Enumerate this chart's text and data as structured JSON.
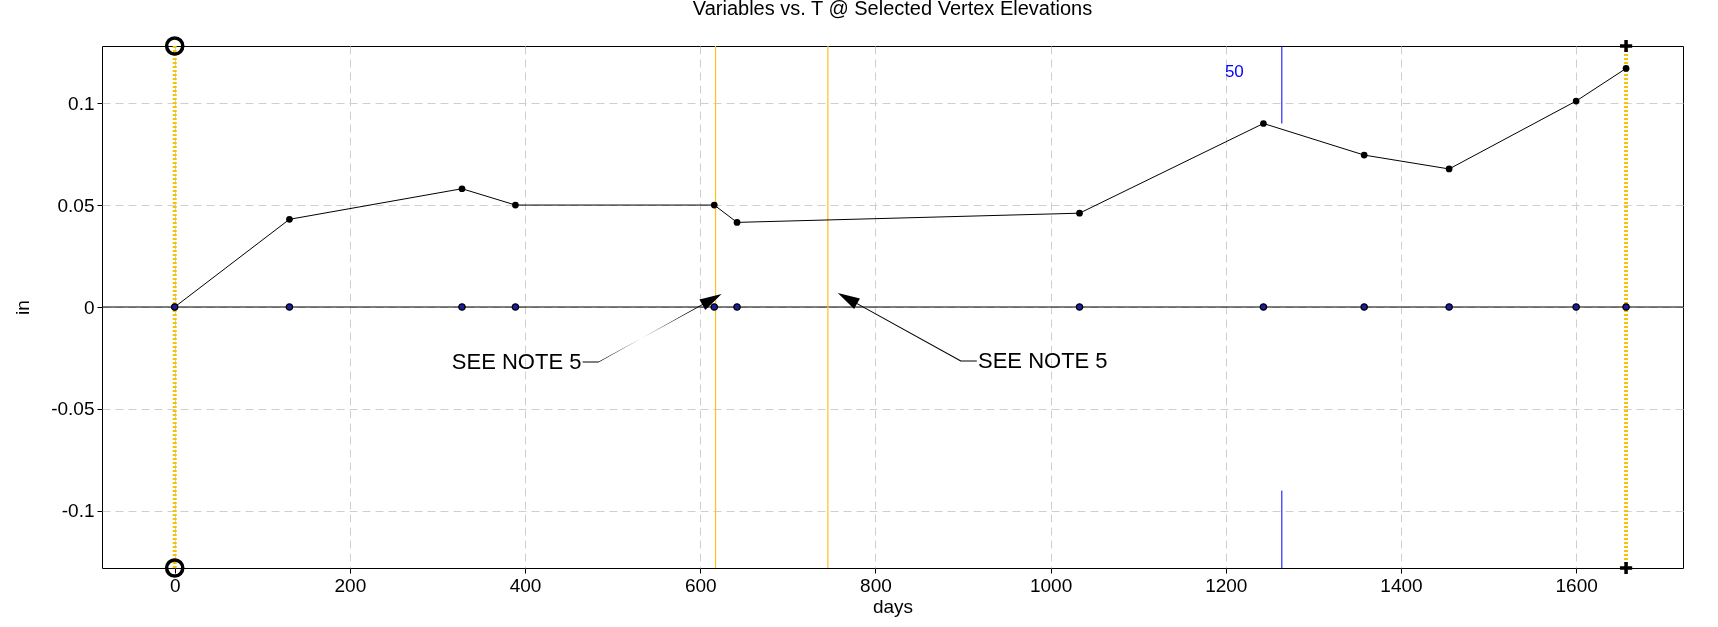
{
  "chart_data": {
    "type": "line",
    "title": "Variables vs. T @ Selected Vertex Elevations",
    "xlabel": "days",
    "ylabel": "in",
    "xlim": [
      -83,
      1722
    ],
    "ylim": [
      -0.128,
      0.128
    ],
    "xticks": [
      0,
      200,
      400,
      600,
      800,
      1000,
      1200,
      1400,
      1600
    ],
    "yticks": [
      -0.1,
      -0.05,
      0,
      0.05,
      0.1
    ],
    "grid": true,
    "series": [
      {
        "color": "#000000",
        "marker": "circle",
        "x": [
          0,
          131,
          328,
          389,
          616,
          642,
          1033,
          1243,
          1358,
          1455,
          1600,
          1657
        ],
        "values": [
          0,
          0.043,
          0.058,
          0.05,
          0.05,
          0.0415,
          0.046,
          0.09,
          0.0745,
          0.0677,
          0.101,
          0.117
        ]
      },
      {
        "type": "scatter",
        "color": "#1c1ca0",
        "marker": "circle",
        "x": [
          0,
          131,
          328,
          389,
          616,
          642,
          1033,
          1243,
          1358,
          1455,
          1600,
          1657
        ],
        "values": [
          0,
          0,
          0,
          0,
          0,
          0,
          0,
          0,
          0,
          0,
          0,
          0
        ]
      },
      {
        "type": "scatter",
        "color": "#000000",
        "marker": "circle",
        "x": [
          0,
          0
        ],
        "values": [
          0.128,
          -0.128
        ]
      },
      {
        "type": "scatter",
        "color": "#000000",
        "marker": "cross",
        "x": [
          1657,
          1657
        ],
        "values": [
          0.128,
          -0.128
        ]
      },
      {
        "type": "line",
        "name": "50",
        "color": "#0000ff",
        "marker": "none",
        "x": [
          1264,
          1264
        ],
        "values": [
          0.128,
          0.09
        ]
      },
      {
        "type": "line",
        "color": "#0000ff",
        "marker": "none",
        "x": [
          1264,
          1264
        ],
        "values": [
          -0.09,
          -0.128
        ]
      }
    ],
    "ref_lines": [
      {
        "axis": "y",
        "value": 0,
        "color": "#000000",
        "line_style": "solid"
      },
      {
        "axis": "x",
        "value": 0,
        "color": "#f5c400",
        "line_style": "dotted"
      },
      {
        "axis": "x",
        "value": 617.5,
        "color": "#ffc020",
        "line_style": "solid"
      },
      {
        "axis": "x",
        "value": 745.7,
        "color": "#ffc020",
        "line_style": "solid"
      },
      {
        "axis": "x",
        "value": 1657,
        "color": "#f5c400",
        "line_style": "dotted"
      }
    ],
    "annotations": [
      "SEE NOTE 5",
      "SEE NOTE 5"
    ]
  }
}
